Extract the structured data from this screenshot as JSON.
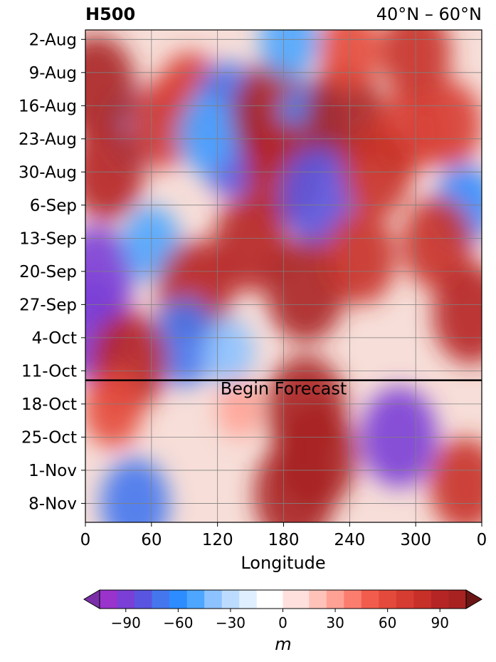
{
  "chart_data": {
    "type": "heatmap",
    "title_left": "H500",
    "title_right": "40°N – 60°N",
    "xlabel": "Longitude",
    "x_ticks": [
      "0",
      "60",
      "120",
      "180",
      "240",
      "300",
      "0"
    ],
    "x_tick_values": [
      0,
      60,
      120,
      180,
      240,
      300,
      360
    ],
    "xlim": [
      0,
      360
    ],
    "y_ticks": [
      "2-Aug",
      "9-Aug",
      "16-Aug",
      "23-Aug",
      "30-Aug",
      "6-Sep",
      "13-Sep",
      "20-Sep",
      "27-Sep",
      "4-Oct",
      "11-Oct",
      "18-Oct",
      "25-Oct",
      "1-Nov",
      "8-Nov"
    ],
    "y_tick_days": [
      2,
      9,
      16,
      23,
      30,
      37,
      44,
      51,
      58,
      65,
      72,
      79,
      86,
      93,
      100
    ],
    "ylim_days": [
      0,
      104
    ],
    "grid": true,
    "forecast_line_day": 74,
    "forecast_label": "Begin Forecast",
    "colorbar": {
      "label": "m",
      "ticks": [
        "−90",
        "−60",
        "−30",
        "0",
        "30",
        "60",
        "90"
      ],
      "tick_values": [
        -90,
        -60,
        -30,
        0,
        30,
        60,
        90
      ],
      "levels": [
        -105,
        -95,
        -85,
        -75,
        -65,
        -55,
        -45,
        -35,
        -25,
        -15,
        0,
        15,
        25,
        35,
        45,
        55,
        65,
        75,
        85,
        95,
        105
      ],
      "colors": [
        "#9933cc",
        "#7a3fd6",
        "#5a55e0",
        "#4477ee",
        "#2d8cff",
        "#4da6ff",
        "#8cc2ff",
        "#bcdcff",
        "#e0efff",
        "#ffffff",
        "#ffe0dc",
        "#ffc2b8",
        "#ffa194",
        "#fb7d6e",
        "#f25c4c",
        "#e44a3c",
        "#d63c32",
        "#c73028",
        "#b52525",
        "#a82222"
      ],
      "extend": "both",
      "extend_low_color": "#7a2fa8",
      "extend_high_color": "#6b1515"
    },
    "anomaly_features": [
      {
        "lon": 45,
        "day": 21,
        "value": -55
      },
      {
        "lon": 70,
        "day": 20,
        "value": 70
      },
      {
        "lon": 95,
        "day": 14,
        "value": 70
      },
      {
        "lon": 130,
        "day": 16,
        "value": -70
      },
      {
        "lon": 135,
        "day": 25,
        "value": -85
      },
      {
        "lon": 110,
        "day": 22,
        "value": -55
      },
      {
        "lon": 170,
        "day": 18,
        "value": 100
      },
      {
        "lon": 205,
        "day": 20,
        "value": -65
      },
      {
        "lon": 235,
        "day": 18,
        "value": 95
      },
      {
        "lon": 180,
        "day": 30,
        "value": 90
      },
      {
        "lon": 210,
        "day": 35,
        "value": -85
      },
      {
        "lon": 290,
        "day": 22,
        "value": 65
      },
      {
        "lon": 330,
        "day": 20,
        "value": 70
      },
      {
        "lon": 345,
        "day": 37,
        "value": -60
      },
      {
        "lon": 10,
        "day": 12,
        "value": 95
      },
      {
        "lon": 10,
        "day": 52,
        "value": -90
      },
      {
        "lon": 5,
        "day": 63,
        "value": -95
      },
      {
        "lon": 60,
        "day": 45,
        "value": -50
      },
      {
        "lon": 100,
        "day": 55,
        "value": 90
      },
      {
        "lon": 150,
        "day": 45,
        "value": 85
      },
      {
        "lon": 200,
        "day": 55,
        "value": 95
      },
      {
        "lon": 90,
        "day": 66,
        "value": -70
      },
      {
        "lon": 130,
        "day": 68,
        "value": -40
      },
      {
        "lon": 40,
        "day": 70,
        "value": 90
      },
      {
        "lon": 250,
        "day": 48,
        "value": 80
      },
      {
        "lon": 320,
        "day": 45,
        "value": 80
      },
      {
        "lon": 350,
        "day": 60,
        "value": 90
      },
      {
        "lon": 200,
        "day": 80,
        "value": 100
      },
      {
        "lon": 210,
        "day": 90,
        "value": 100
      },
      {
        "lon": 190,
        "day": 98,
        "value": 100
      },
      {
        "lon": 285,
        "day": 86,
        "value": -90
      },
      {
        "lon": 25,
        "day": 80,
        "value": 55
      },
      {
        "lon": 45,
        "day": 100,
        "value": -75
      },
      {
        "lon": 345,
        "day": 96,
        "value": 80
      },
      {
        "lon": 140,
        "day": 80,
        "value": 25
      },
      {
        "lon": 240,
        "day": 4,
        "value": 60
      },
      {
        "lon": 185,
        "day": 2,
        "value": -55
      },
      {
        "lon": 300,
        "day": 5,
        "value": 80
      },
      {
        "lon": 265,
        "day": 30,
        "value": 75
      },
      {
        "lon": 20,
        "day": 30,
        "value": 85
      }
    ]
  }
}
